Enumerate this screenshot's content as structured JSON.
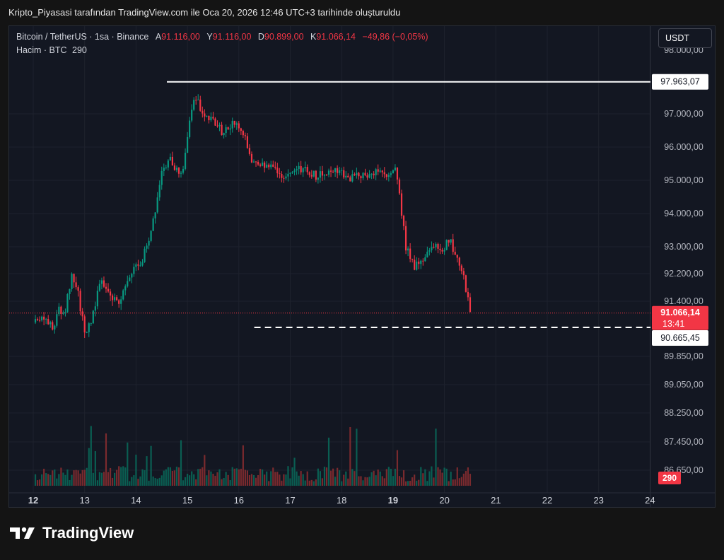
{
  "header": {
    "title": "Kripto_Piyasasi tarafından TradingView.com ile Oca 20, 2026 12:46 UTC+3 tarihinde oluşturuldu"
  },
  "legend": {
    "symbol": "Bitcoin / TetherUS · 1sa · Binance",
    "open_label": "A",
    "open": "91.116,00",
    "high_label": "Y",
    "high": "91.116,00",
    "low_label": "D",
    "low": "90.899,00",
    "close_label": "K",
    "close": "91.066,14",
    "change": "−49,86 (−0,05%)",
    "volume_label": "Hacim · BTC",
    "volume_value": "290"
  },
  "currency_button": {
    "label": "USDT"
  },
  "footer": {
    "brand": "TradingView"
  },
  "colors": {
    "up": "#089981",
    "down": "#f23645",
    "up_vol": "#0a5e52",
    "down_vol": "#7a2a2e",
    "background": "#131722",
    "grid": "#1e222d"
  },
  "chart_data": {
    "type": "candlestick",
    "symbol": "Bitcoin / TetherUS",
    "interval": "1sa",
    "exchange": "Binance",
    "y_ticks": [
      "97.000,00",
      "96.000,00",
      "95.000,00",
      "94.000,00",
      "93.000,00",
      "92.200,00",
      "91.400,00",
      "89.850,00",
      "89.050,00",
      "88.250,00",
      "87.450,00",
      "86.650,00"
    ],
    "y_tick_values": [
      97000,
      96000,
      95000,
      94000,
      93000,
      92200,
      91400,
      89850,
      89050,
      88250,
      87450,
      86650
    ],
    "x_ticks": [
      "12",
      "13",
      "14",
      "15",
      "16",
      "17",
      "18",
      "19",
      "20",
      "21",
      "22",
      "23",
      "24"
    ],
    "x_tick_days": [
      12,
      13,
      14,
      15,
      16,
      17,
      18,
      19,
      20,
      21,
      22,
      23,
      24
    ],
    "bold_x_ticks": [
      "12",
      "19"
    ],
    "partial_top_label": "98.000,00",
    "resistance": {
      "value": 97963.07,
      "label": "97.963,07"
    },
    "support": {
      "value": 90665.45,
      "label": "90.665,45"
    },
    "last_price": {
      "value": 91066.14,
      "label": "91.066,14",
      "countdown": "13:41"
    },
    "volume_badge": "290",
    "price_path": [
      [
        12.0,
        90800
      ],
      [
        12.2,
        90950
      ],
      [
        12.4,
        90700
      ],
      [
        12.5,
        91200
      ],
      [
        12.6,
        91000
      ],
      [
        12.75,
        92200
      ],
      [
        12.85,
        91800
      ],
      [
        13.0,
        90500
      ],
      [
        13.15,
        90900
      ],
      [
        13.3,
        92000
      ],
      [
        13.5,
        91600
      ],
      [
        13.7,
        91400
      ],
      [
        13.9,
        92300
      ],
      [
        14.1,
        92500
      ],
      [
        14.3,
        93500
      ],
      [
        14.5,
        95200
      ],
      [
        14.65,
        95700
      ],
      [
        14.8,
        95300
      ],
      [
        14.9,
        95100
      ],
      [
        15.05,
        96900
      ],
      [
        15.15,
        97500
      ],
      [
        15.3,
        97000
      ],
      [
        15.5,
        96800
      ],
      [
        15.7,
        96400
      ],
      [
        15.9,
        96800
      ],
      [
        16.05,
        96600
      ],
      [
        16.25,
        95600
      ],
      [
        16.4,
        95400
      ],
      [
        16.6,
        95500
      ],
      [
        16.8,
        95200
      ],
      [
        16.95,
        95100
      ],
      [
        17.1,
        95400
      ],
      [
        17.3,
        95300
      ],
      [
        17.5,
        95150
      ],
      [
        17.7,
        95200
      ],
      [
        17.9,
        95300
      ],
      [
        18.1,
        95050
      ],
      [
        18.3,
        95150
      ],
      [
        18.5,
        95200
      ],
      [
        18.7,
        95300
      ],
      [
        18.9,
        95100
      ],
      [
        19.05,
        95400
      ],
      [
        19.1,
        94900
      ],
      [
        19.25,
        93000
      ],
      [
        19.4,
        92400
      ],
      [
        19.6,
        92700
      ],
      [
        19.8,
        93100
      ],
      [
        19.95,
        92900
      ],
      [
        20.1,
        93200
      ],
      [
        20.2,
        92800
      ],
      [
        20.3,
        92500
      ],
      [
        20.4,
        91900
      ],
      [
        20.5,
        91066
      ]
    ]
  }
}
